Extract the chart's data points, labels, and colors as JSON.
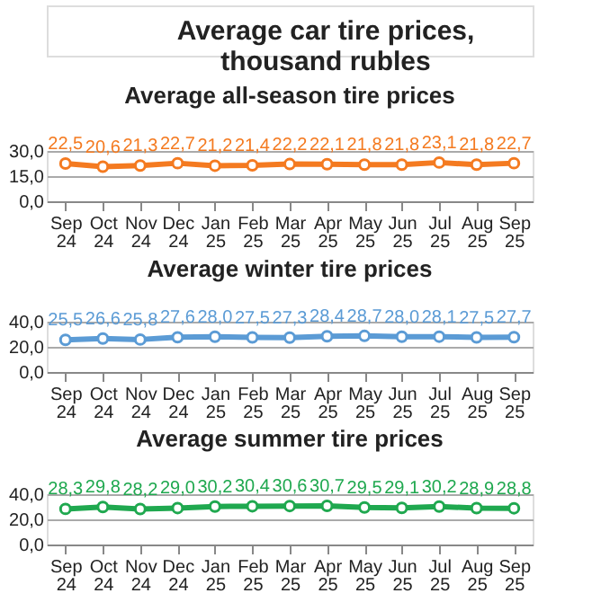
{
  "chart_data": [
    {
      "type": "other",
      "title": "Average car tire prices,\nthousand rubles"
    },
    {
      "type": "line",
      "title": "Average all-season tire prices",
      "categories": [
        "Sep 24",
        "Oct 24",
        "Nov 24",
        "Dec 24",
        "Jan 25",
        "Feb 25",
        "Mar 25",
        "Apr 25",
        "May 25",
        "Jun 25",
        "Jul 25",
        "Aug 25",
        "Sep 25"
      ],
      "series": [
        {
          "color": "#f47a20",
          "values": [
            22.5,
            20.6,
            21.3,
            22.7,
            21.2,
            21.4,
            22.2,
            22.1,
            21.8,
            21.8,
            23.1,
            21.8,
            22.7
          ],
          "value_labels": [
            "22,5",
            "20,6",
            "21,3",
            "22,7",
            "21,2",
            "21,4",
            "22,2",
            "22,1",
            "21,8",
            "21,8",
            "23,1",
            "21,8",
            "22,7"
          ]
        }
      ],
      "ylim": [
        0,
        30
      ],
      "yticks": [
        {
          "value": 0,
          "label": "0,0"
        },
        {
          "value": 15,
          "label": "15,0"
        },
        {
          "value": 30,
          "label": "30,0"
        }
      ],
      "grid": "y",
      "marker": "circle",
      "line_style": "solid"
    },
    {
      "type": "line",
      "title": "Average winter tire prices",
      "categories": [
        "Sep 24",
        "Oct 24",
        "Nov 24",
        "Dec 24",
        "Jan 25",
        "Feb 25",
        "Mar 25",
        "Apr 25",
        "May 25",
        "Jun 25",
        "Jul 25",
        "Aug 25",
        "Sep 25"
      ],
      "series": [
        {
          "color": "#5b9bd5",
          "values": [
            25.5,
            26.6,
            25.8,
            27.6,
            28.0,
            27.5,
            27.3,
            28.4,
            28.7,
            28.0,
            28.1,
            27.5,
            27.7
          ],
          "value_labels": [
            "25,5",
            "26,6",
            "25,8",
            "27,6",
            "28,0",
            "27,5",
            "27,3",
            "28,4",
            "28,7",
            "28,0",
            "28,1",
            "27,5",
            "27,7"
          ]
        }
      ],
      "ylim": [
        0,
        40
      ],
      "yticks": [
        {
          "value": 0,
          "label": "0,0"
        },
        {
          "value": 20,
          "label": "20,0"
        },
        {
          "value": 40,
          "label": "40,0"
        }
      ],
      "grid": "y",
      "marker": "circle",
      "line_style": "solid"
    },
    {
      "type": "line",
      "title": "Average summer tire prices",
      "categories": [
        "Sep 24",
        "Oct 24",
        "Nov 24",
        "Dec 24",
        "Jan 25",
        "Feb 25",
        "Mar 25",
        "Apr 25",
        "May 25",
        "Jun 25",
        "Jul 25",
        "Aug 25",
        "Sep 25"
      ],
      "series": [
        {
          "color": "#1fa84f",
          "values": [
            28.3,
            29.8,
            28.2,
            29.0,
            30.2,
            30.4,
            30.6,
            30.7,
            29.5,
            29.1,
            30.2,
            28.9,
            28.8
          ],
          "value_labels": [
            "28,3",
            "29,8",
            "28,2",
            "29,0",
            "30,2",
            "30,4",
            "30,6",
            "30,7",
            "29,5",
            "29,1",
            "30,2",
            "28,9",
            "28,8"
          ]
        }
      ],
      "ylim": [
        0,
        40
      ],
      "yticks": [
        {
          "value": 0,
          "label": "0,0"
        },
        {
          "value": 20,
          "label": "20,0"
        },
        {
          "value": 40,
          "label": "40,0"
        }
      ],
      "grid": "y",
      "marker": "circle",
      "line_style": "solid"
    }
  ]
}
